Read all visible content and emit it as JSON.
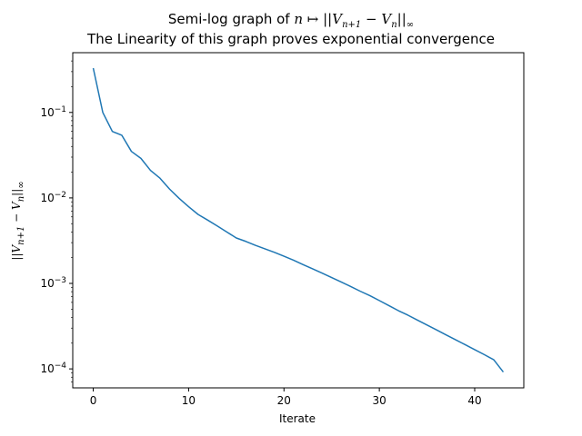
{
  "chart_data": {
    "type": "line",
    "title_prefix": "Semi-log graph of ",
    "title_math": "n ↦ ||V",
    "title_math_sub1": "n+1",
    "title_math_mid": " − V",
    "title_math_sub2": "n",
    "title_math_end": "||",
    "title_math_inf": "∞",
    "subtitle": "The Linearity of this graph proves exponential convergence",
    "xlabel": "Iterate",
    "ylabel_math": "||V",
    "ylabel_sub1": "n+1",
    "ylabel_mid": " − V",
    "ylabel_sub2": "n",
    "ylabel_end": "||",
    "ylabel_inf": "∞",
    "yscale": "log",
    "xlim": [
      -2.15,
      45.15
    ],
    "ylim": [
      6e-05,
      0.5
    ],
    "x_ticks": [
      0,
      10,
      20,
      30,
      40
    ],
    "y_ticks": [
      {
        "value": 0.1,
        "base": "10",
        "exp": "−1"
      },
      {
        "value": 0.01,
        "base": "10",
        "exp": "−2"
      },
      {
        "value": 0.001,
        "base": "10",
        "exp": "−3"
      },
      {
        "value": 0.0001,
        "base": "10",
        "exp": "−4"
      }
    ],
    "grid": false,
    "series": [
      {
        "color": "#1f77b4",
        "x": [
          0,
          1,
          2,
          3,
          4,
          5,
          6,
          7,
          8,
          9,
          10,
          11,
          12,
          13,
          14,
          15,
          16,
          17,
          18,
          19,
          20,
          21,
          22,
          23,
          24,
          25,
          26,
          27,
          28,
          29,
          30,
          31,
          32,
          33,
          34,
          35,
          36,
          37,
          38,
          39,
          40,
          41,
          42,
          43
        ],
        "y": [
          0.33,
          0.1,
          0.06,
          0.054,
          0.035,
          0.029,
          0.021,
          0.017,
          0.0127,
          0.0099,
          0.0079,
          0.0064,
          0.0055,
          0.0047,
          0.004,
          0.0034,
          0.0031,
          0.00279,
          0.00254,
          0.00231,
          0.00208,
          0.00187,
          0.00166,
          0.00148,
          0.00132,
          0.00117,
          0.00104,
          0.00092,
          0.00081,
          0.00072,
          0.00063,
          0.00055,
          0.00048,
          0.000425,
          0.000372,
          0.000326,
          0.000286,
          0.00025,
          0.000219,
          0.000192,
          0.000168,
          0.000147,
          0.000128,
          9.2e-05
        ]
      }
    ]
  }
}
